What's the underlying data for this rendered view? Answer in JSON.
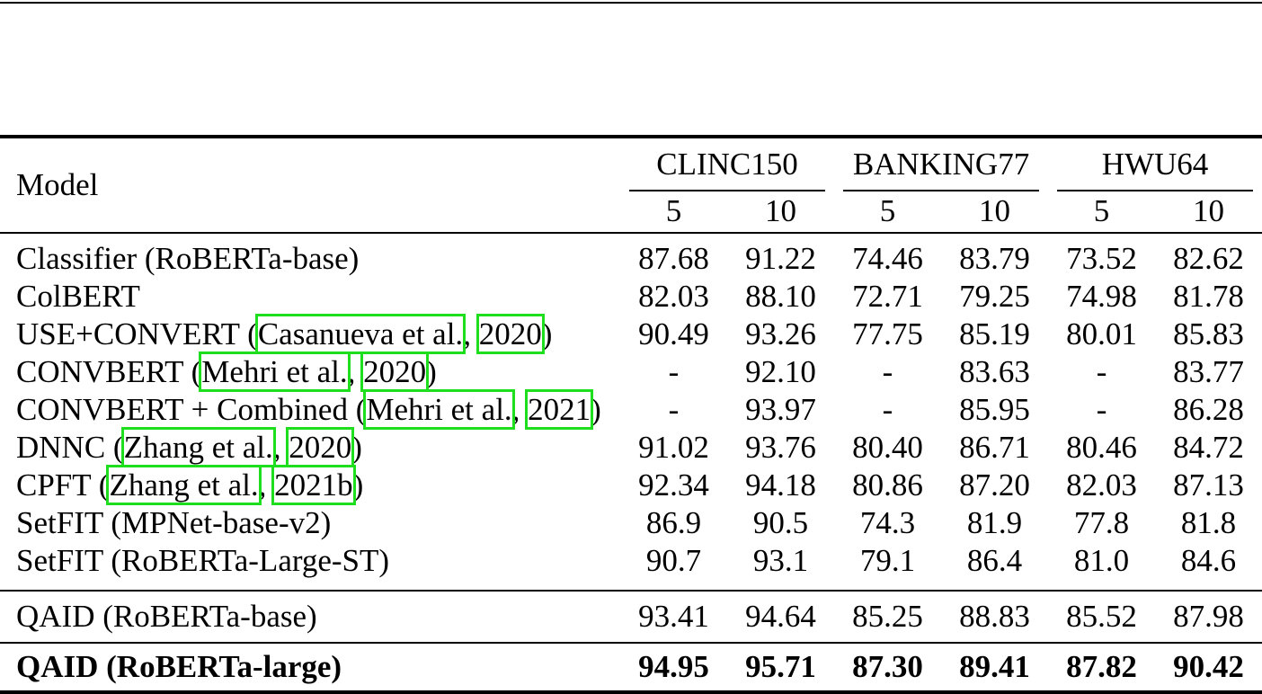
{
  "colors": {
    "citation_box": "#1EDE1E",
    "rule": "#000000",
    "background": "#ffffff"
  },
  "table": {
    "header": {
      "model_label": "Model",
      "groups": [
        {
          "label": "CLINC150",
          "shots": [
            "5",
            "10"
          ]
        },
        {
          "label": "BANKING77",
          "shots": [
            "5",
            "10"
          ]
        },
        {
          "label": "HWU64",
          "shots": [
            "5",
            "10"
          ]
        }
      ]
    },
    "sections": [
      {
        "name": "baselines",
        "rows": [
          {
            "model": [
              {
                "t": "Classifier (RoBERTa-base)"
              }
            ],
            "values": [
              "87.68",
              "91.22",
              "74.46",
              "83.79",
              "73.52",
              "82.62"
            ],
            "bold": false
          },
          {
            "model": [
              {
                "t": "ColBERT"
              }
            ],
            "values": [
              "82.03",
              "88.10",
              "72.71",
              "79.25",
              "74.98",
              "81.78"
            ],
            "bold": false
          },
          {
            "model": [
              {
                "t": "USE+CONVERT ("
              },
              {
                "t": "Casanueva et al.",
                "link": true
              },
              {
                "t": ", "
              },
              {
                "t": "2020",
                "link": true
              },
              {
                "t": ")"
              }
            ],
            "values": [
              "90.49",
              "93.26",
              "77.75",
              "85.19",
              "80.01",
              "85.83"
            ],
            "bold": false
          },
          {
            "model": [
              {
                "t": "CONVBERT ("
              },
              {
                "t": "Mehri et al.",
                "link": true
              },
              {
                "t": ", "
              },
              {
                "t": "2020",
                "link": true
              },
              {
                "t": ")"
              }
            ],
            "values": [
              "-",
              "92.10",
              "-",
              "83.63",
              "-",
              "83.77"
            ],
            "bold": false
          },
          {
            "model": [
              {
                "t": "CONVBERT + Combined ("
              },
              {
                "t": "Mehri et al.",
                "link": true
              },
              {
                "t": ", "
              },
              {
                "t": "2021",
                "link": true
              },
              {
                "t": ")"
              }
            ],
            "values": [
              "-",
              "93.97",
              "-",
              "85.95",
              "-",
              "86.28"
            ],
            "bold": false
          },
          {
            "model": [
              {
                "t": "DNNC ("
              },
              {
                "t": "Zhang et al.",
                "link": true
              },
              {
                "t": ", "
              },
              {
                "t": "2020",
                "link": true
              },
              {
                "t": ")"
              }
            ],
            "values": [
              "91.02",
              "93.76",
              "80.40",
              "86.71",
              "80.46",
              "84.72"
            ],
            "bold": false
          },
          {
            "model": [
              {
                "t": "CPFT ("
              },
              {
                "t": "Zhang et al.",
                "link": true
              },
              {
                "t": ", "
              },
              {
                "t": "2021b",
                "link": true
              },
              {
                "t": ")"
              }
            ],
            "values": [
              "92.34",
              "94.18",
              "80.86",
              "87.20",
              "82.03",
              "87.13"
            ],
            "bold": false
          },
          {
            "model": [
              {
                "t": "SetFIT (MPNet-base-v2)"
              }
            ],
            "values": [
              "86.9",
              "90.5",
              "74.3",
              "81.9",
              "77.8",
              "81.8"
            ],
            "bold": false
          },
          {
            "model": [
              {
                "t": "SetFIT (RoBERTa-Large-ST)"
              }
            ],
            "values": [
              "90.7",
              "93.1",
              "79.1",
              "86.4",
              "81.0",
              "84.6"
            ],
            "bold": false
          }
        ]
      },
      {
        "name": "qaid-base",
        "rows": [
          {
            "model": [
              {
                "t": "QAID (RoBERTa-base)"
              }
            ],
            "values": [
              "93.41",
              "94.64",
              "85.25",
              "88.83",
              "85.52",
              "87.98"
            ],
            "bold": false
          }
        ]
      },
      {
        "name": "qaid-large",
        "rows": [
          {
            "model": [
              {
                "t": "QAID (RoBERTa-large)"
              }
            ],
            "values": [
              "94.95",
              "95.71",
              "87.30",
              "89.41",
              "87.82",
              "90.42"
            ],
            "bold": true
          }
        ]
      }
    ]
  }
}
